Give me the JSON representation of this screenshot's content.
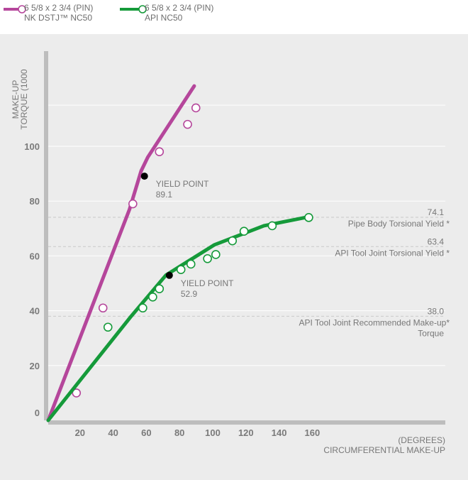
{
  "legend": [
    {
      "line1": "6 5/8 x 2 3/4 (PIN)",
      "line2": "NK DSTJ™ NC50",
      "color": "#b5469b"
    },
    {
      "line1": "6 5/8 x 2 3/4 (PIN)",
      "line2": "API NC50",
      "color": "#159a3a"
    }
  ],
  "chart_data": {
    "type": "line",
    "ylabel_lines": [
      "MAKE-UP",
      "TORQUE (1000"
    ],
    "xlabel_lines": [
      "(DEGREES)",
      "CIRCUMFERENTIAL MAKE-UP"
    ],
    "xlim": [
      0,
      160
    ],
    "ylim": [
      0,
      115
    ],
    "x_ticks": [
      20,
      40,
      60,
      80,
      100,
      120,
      140,
      160
    ],
    "y_ticks": [
      0,
      20,
      40,
      60,
      80,
      100
    ],
    "y_tick_labels": [
      "0",
      "20",
      "40",
      "60",
      "80",
      "100"
    ],
    "x_tick_labels": [
      "20",
      "40",
      "60",
      "80",
      "100",
      "120",
      "140",
      "160"
    ],
    "grid": "horizontal",
    "series": [
      {
        "color": "#b5469b",
        "line": [
          [
            0,
            0
          ],
          [
            49,
            77
          ],
          [
            56,
            91
          ],
          [
            60,
            96
          ],
          [
            88,
            122
          ]
        ],
        "markers": [
          [
            17,
            10
          ],
          [
            33,
            41
          ],
          [
            51,
            79
          ],
          [
            67,
            98
          ],
          [
            84,
            108
          ],
          [
            89,
            114
          ]
        ]
      },
      {
        "color": "#159a3a",
        "line": [
          [
            0,
            0
          ],
          [
            50,
            38
          ],
          [
            71,
            53
          ],
          [
            100,
            64
          ],
          [
            130,
            71
          ],
          [
            155,
            74
          ]
        ],
        "markers": [
          [
            36,
            34
          ],
          [
            57,
            41
          ],
          [
            63,
            45
          ],
          [
            67,
            48
          ],
          [
            80,
            55
          ],
          [
            86,
            57
          ],
          [
            96,
            59
          ],
          [
            101,
            60.5
          ],
          [
            111,
            65.5
          ],
          [
            118,
            69
          ],
          [
            135,
            71
          ],
          [
            157,
            74
          ]
        ]
      }
    ],
    "yield_points": [
      {
        "x": 58,
        "y": 89.1,
        "label": "YIELD POINT",
        "value": "89.1"
      },
      {
        "x": 73,
        "y": 52.9,
        "label": "YIELD POINT",
        "value": "52.9"
      }
    ],
    "reference_lines": [
      {
        "y": 74.1,
        "value": "74.1",
        "label": "Pipe Body Torsional Yield *"
      },
      {
        "y": 63.4,
        "value": "63.4",
        "label": "API Tool Joint Torsional Yield *"
      },
      {
        "y": 38.0,
        "value": "38.0",
        "label": "API Tool Joint Recommended Make-up*",
        "label2": "Torque"
      }
    ]
  }
}
